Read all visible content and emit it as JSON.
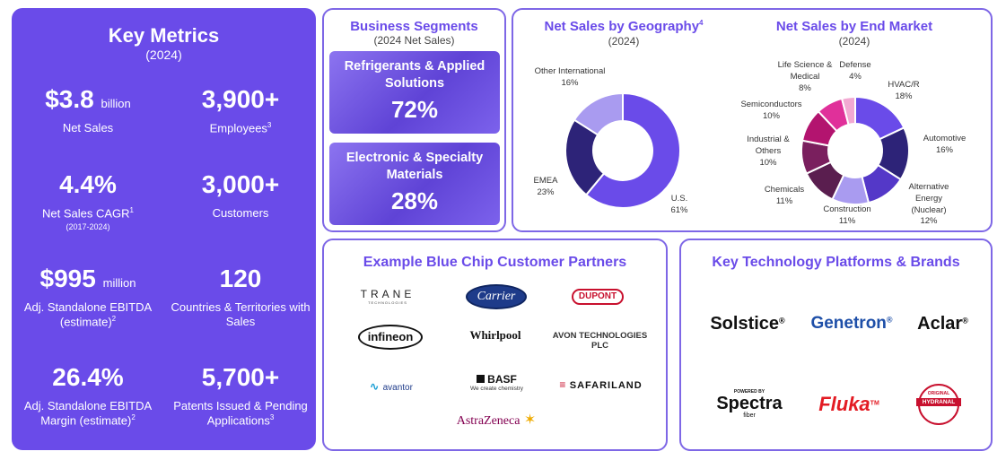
{
  "key_metrics": {
    "title": "Key Metrics",
    "subtitle": "(2024)",
    "items": [
      {
        "value": "$3.8",
        "unit": "billion",
        "label": "Net Sales",
        "sup": "",
        "label2": ""
      },
      {
        "value": "3,900+",
        "unit": "",
        "label": "Employees",
        "sup": "3",
        "label2": ""
      },
      {
        "value": "4.4%",
        "unit": "",
        "label": "Net Sales CAGR",
        "sup": "1",
        "label2": "(2017-2024)"
      },
      {
        "value": "3,000+",
        "unit": "",
        "label": "Customers",
        "sup": "",
        "label2": ""
      },
      {
        "value": "$995",
        "unit": "million",
        "label": "Adj. Standalone EBITDA (estimate)",
        "sup": "2",
        "label2": ""
      },
      {
        "value": "120",
        "unit": "",
        "label": "Countries & Territories with Sales",
        "sup": "",
        "label2": ""
      },
      {
        "value": "26.4%",
        "unit": "",
        "label": "Adj. Standalone EBITDA Margin (estimate)",
        "sup": "2",
        "label2": ""
      },
      {
        "value": "5,700+",
        "unit": "",
        "label": "Patents Issued & Pending Applications",
        "sup": "3",
        "label2": ""
      }
    ]
  },
  "segments": {
    "title": "Business Segments",
    "subtitle": "(2024 Net Sales)",
    "items": [
      {
        "name": "Refrigerants & Applied Solutions",
        "percent": "72%"
      },
      {
        "name": "Electronic & Specialty Materials",
        "percent": "28%"
      }
    ]
  },
  "geography": {
    "title": "Net Sales by Geography",
    "title_sup": "4",
    "subtitle": "(2024)",
    "slices": [
      {
        "name": "U.S.",
        "pct": "61%",
        "value": 61,
        "color": "#6A4BE9"
      },
      {
        "name": "EMEA",
        "pct": "23%",
        "value": 23,
        "color": "#2D2378"
      },
      {
        "name": "Other International",
        "pct": "16%",
        "value": 16,
        "color": "#A99BF0"
      }
    ]
  },
  "end_market": {
    "title": "Net Sales by End Market",
    "subtitle": "(2024)",
    "slices": [
      {
        "name": "HVAC/R",
        "pct": "18%",
        "value": 18,
        "color": "#6A4BE9"
      },
      {
        "name": "Automotive",
        "pct": "16%",
        "value": 16,
        "color": "#2D2378"
      },
      {
        "name": "Alternative Energy (Nuclear)",
        "pct": "12%",
        "value": 12,
        "color": "#5438C8"
      },
      {
        "name": "Construction",
        "pct": "11%",
        "value": 11,
        "color": "#A99BF0"
      },
      {
        "name": "Chemicals",
        "pct": "11%",
        "value": 11,
        "color": "#5A1E4F"
      },
      {
        "name": "Industrial & Others",
        "pct": "10%",
        "value": 10,
        "color": "#7A1F5E"
      },
      {
        "name": "Semiconductors",
        "pct": "10%",
        "value": 10,
        "color": "#B3146F"
      },
      {
        "name": "Life Science & Medical",
        "pct": "8%",
        "value": 8,
        "color": "#E0309A"
      },
      {
        "name": "Defense",
        "pct": "4%",
        "value": 4,
        "color": "#F2A9D2"
      }
    ]
  },
  "partners": {
    "title": "Example Blue Chip Customer Partners",
    "logos": [
      "TRANE",
      "TECHNOLOGIES",
      "Carrier",
      "DUPONT",
      "infineon",
      "Whirlpool",
      "AVON TECHNOLOGIES PLC",
      "avantor",
      "BASF",
      "We create chemistry",
      "SAFARILAND",
      "AstraZeneca"
    ]
  },
  "platforms": {
    "title": "Key Technology Platforms & Brands",
    "brands": [
      "Solstice",
      "Genetron",
      "Aclar",
      "POWERED BY",
      "Spectra",
      "fiber",
      "Fluka",
      "HYDRANAL",
      "ORIGINAL"
    ]
  },
  "colors": {
    "accent": "#6A4BE9",
    "border": "#7E67E6"
  }
}
